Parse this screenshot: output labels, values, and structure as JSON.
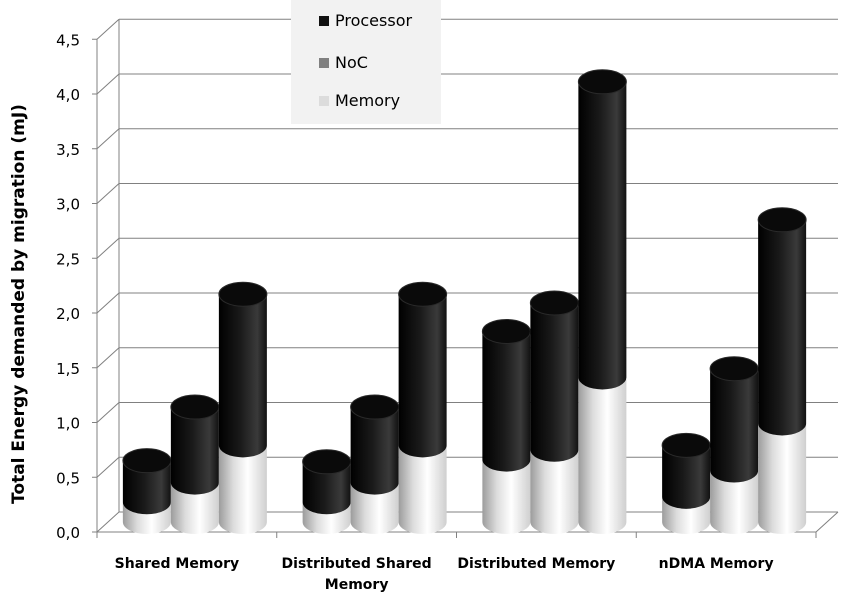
{
  "chart_data": {
    "type": "bar",
    "stacked": true,
    "three_d": true,
    "ylabel": "Total Energy demanded by migration (mJ)",
    "ylim": [
      0,
      4.5
    ],
    "yticks": [
      "0,0",
      "0,5",
      "1,0",
      "1,5",
      "2,0",
      "2,5",
      "3,0",
      "3,5",
      "4,0",
      "4,5"
    ],
    "grid": true,
    "legend_position": "top-center",
    "categories": [
      {
        "label_lines": [
          "Shared Memory"
        ]
      },
      {
        "label_lines": [
          "Distributed Shared",
          "Memory"
        ]
      },
      {
        "label_lines": [
          "Distributed Memory"
        ]
      },
      {
        "label_lines": [
          "nDMA Memory"
        ]
      }
    ],
    "series": [
      {
        "name": "Memory",
        "color": "#e8e8e8",
        "values": [
          [
            0.18,
            0.36,
            0.7
          ],
          [
            0.18,
            0.36,
            0.7
          ],
          [
            0.57,
            0.66,
            1.32
          ],
          [
            0.23,
            0.47,
            0.9
          ]
        ]
      },
      {
        "name": "NoC",
        "color": "#808080",
        "values": [
          [
            0.0,
            0.0,
            0.0
          ],
          [
            0.0,
            0.0,
            0.0
          ],
          [
            0.0,
            0.0,
            0.0
          ],
          [
            0.0,
            0.0,
            0.0
          ]
        ]
      },
      {
        "name": "Processor",
        "color": "#000000",
        "values": [
          [
            0.38,
            0.69,
            1.38
          ],
          [
            0.37,
            0.69,
            1.38
          ],
          [
            1.17,
            1.34,
            2.7
          ],
          [
            0.47,
            0.93,
            1.86
          ]
        ]
      }
    ],
    "legend": [
      {
        "name": "Processor",
        "color": "#111111"
      },
      {
        "name": "NoC",
        "color": "#808080"
      },
      {
        "name": "Memory",
        "color": "#dcdcdc"
      }
    ]
  }
}
